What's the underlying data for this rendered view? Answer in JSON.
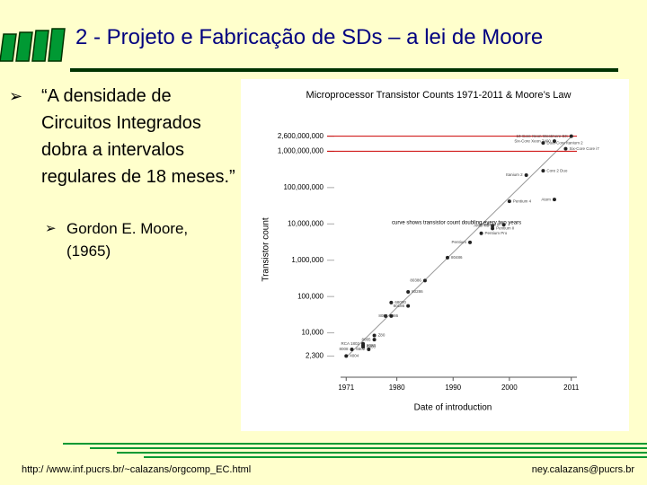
{
  "header": {
    "title": "2 - Projeto e Fabricação de SDs – a lei de Moore"
  },
  "bullets": [
    {
      "text": "“A densidade de Circuitos Integrados dobra a intervalos regulares de 18 meses.”",
      "sub": [
        "Gordon E. Moore, (1965)"
      ]
    }
  ],
  "footer": {
    "left": "http:/ /www.inf.pucrs.br/~calazans/orgcomp_EC.html",
    "right": "ney.calazans@pucrs.br"
  },
  "chart_data": {
    "type": "scatter",
    "title": "Microprocessor Transistor Counts 1971-2011 & Moore’s Law",
    "xlabel": "Date of introduction",
    "ylabel": "Transistor count",
    "annotation": "curve shows transistor count doubling every two years",
    "log_y": true,
    "color": "#222222",
    "highlight_color": "#cc0000",
    "xlim": [
      1970,
      2012
    ],
    "xticks": [
      1971,
      1980,
      1990,
      2000,
      2011
    ],
    "ylim": [
      600,
      10000000000
    ],
    "yticks": [
      {
        "value": 2300,
        "label": "2,300"
      },
      {
        "value": 10000,
        "label": "10,000"
      },
      {
        "value": 100000,
        "label": "100,000"
      },
      {
        "value": 1000000,
        "label": "1,000,000"
      },
      {
        "value": 10000000,
        "label": "10,000,000"
      },
      {
        "value": 100000000,
        "label": "100,000,000"
      },
      {
        "value": 1000000000,
        "label": "1,000,000,000",
        "highlight": true
      },
      {
        "value": 2600000000,
        "label": "2,600,000,000",
        "highlight": true
      }
    ],
    "labels": [
      "4004",
      "8008",
      "8080",
      "RCA 1802",
      "6800",
      "6502",
      "Z80",
      "8085",
      "8086",
      "8088",
      "68000",
      "80186",
      "80286",
      "80386",
      "80486",
      "Pentium",
      "Pentium Pro",
      "AMD K6",
      "Pentium II",
      "Pentium III",
      "Pentium 4",
      "Itanium 2",
      "Core 2 Duo",
      "Atom",
      "Dual-Core Itanium 2",
      "Six-Core Xeon 7400",
      "Six-Core Core i7",
      "10-Core Xeon Westmere-EX"
    ],
    "x": [
      1971,
      1972,
      1974,
      1974,
      1974,
      1975,
      1976,
      1976,
      1978,
      1979,
      1979,
      1982,
      1982,
      1985,
      1989,
      1993,
      1995,
      1997,
      1997,
      1999,
      2000,
      2003,
      2006,
      2008,
      2006,
      2008,
      2010,
      2011
    ],
    "values": [
      2300,
      3500,
      4500,
      5000,
      4100,
      3510,
      8500,
      6500,
      29000,
      29000,
      68000,
      55000,
      134000,
      275000,
      1180000,
      3100000,
      5500000,
      8800000,
      7500000,
      9500000,
      42000000,
      220000000,
      291000000,
      47000000,
      1700000000,
      1900000000,
      1170000000,
      2600000000
    ]
  }
}
